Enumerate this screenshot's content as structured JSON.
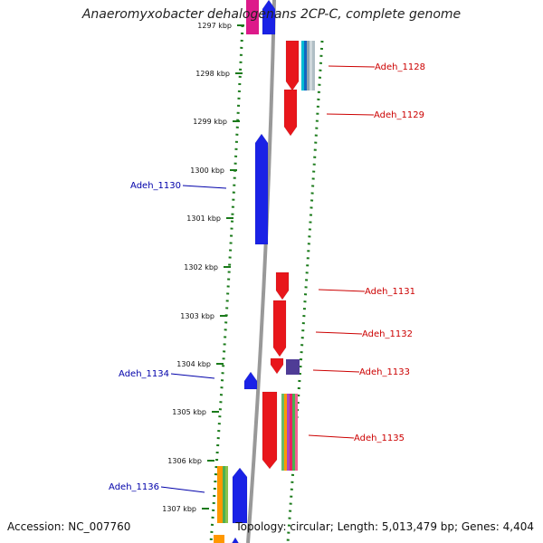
{
  "title": "Anaeromyxobacter dehalogenans 2CP-C, complete genome",
  "footer": {
    "accession": "Accession: NC_007760",
    "summary": "Topology: circular; Length: 5,013,479 bp; Genes: 4,404"
  },
  "colors": {
    "forward_gene": "#e8161b",
    "reverse_gene": "#1a22e6",
    "forward_label": "#cc0000",
    "reverse_label": "#0000aa",
    "axis": "#999999",
    "tick": "#1a7a1a"
  },
  "ticks": [
    "1297 kbp",
    "1298 kbp",
    "1299 kbp",
    "1300 kbp",
    "1301 kbp",
    "1302 kbp",
    "1303 kbp",
    "1304 kbp",
    "1305 kbp",
    "1306 kbp",
    "1307 kbp"
  ],
  "labels": [
    {
      "text": "Adeh_1128",
      "strand": "forward"
    },
    {
      "text": "Adeh_1129",
      "strand": "forward"
    },
    {
      "text": "Adeh_1130",
      "strand": "reverse"
    },
    {
      "text": "Adeh_1131",
      "strand": "forward"
    },
    {
      "text": "Adeh_1132",
      "strand": "forward"
    },
    {
      "text": "Adeh_1133",
      "strand": "forward"
    },
    {
      "text": "Adeh_1134",
      "strand": "reverse"
    },
    {
      "text": "Adeh_1135",
      "strand": "forward"
    },
    {
      "text": "Adeh_1136",
      "strand": "reverse"
    }
  ]
}
